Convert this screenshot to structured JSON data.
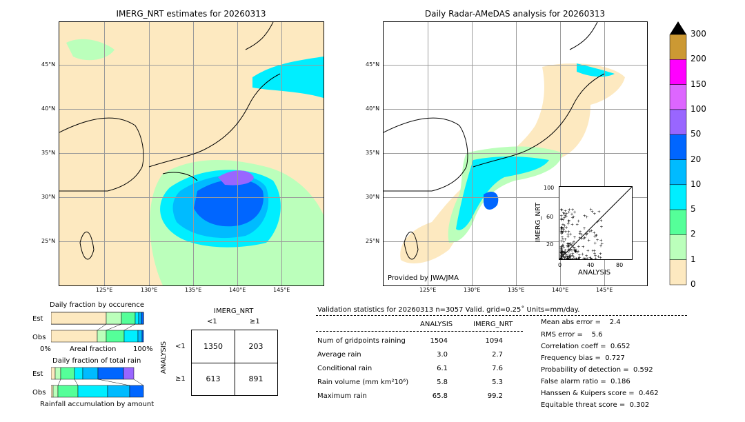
{
  "left_map": {
    "title": "IMERG_NRT estimates for 20260313",
    "lon_ticks": [
      "125°E",
      "130°E",
      "135°E",
      "140°E",
      "145°E"
    ],
    "lat_ticks": [
      "45°N",
      "40°N",
      "35°N",
      "30°N",
      "25°N"
    ]
  },
  "right_map": {
    "title": "Daily Radar-AMeDAS analysis for 20260313",
    "credit": "Provided by JWA/JMA",
    "lon_ticks": [
      "125°E",
      "130°E",
      "135°E",
      "140°E",
      "145°E"
    ],
    "lat_ticks": [
      "45°N",
      "40°N",
      "35°N",
      "30°N",
      "25°N"
    ]
  },
  "colorbar": {
    "levels": [
      "300",
      "200",
      "150",
      "100",
      "50",
      "20",
      "10",
      "5",
      "2",
      "1",
      "0"
    ],
    "colors": [
      "#cc9933",
      "#ff00ff",
      "#dd66ff",
      "#9966ff",
      "#0066ff",
      "#00bbff",
      "#00eeff",
      "#55ff99",
      "#bbffbb",
      "#fde9c0"
    ]
  },
  "chart_data": [
    {
      "type": "bar",
      "title": "Daily fraction by occurence",
      "categories": [
        "Est",
        "Obs"
      ],
      "xlabel": "Areal fraction",
      "x_tick_labels": [
        "0%",
        "100%"
      ],
      "stacked": true
    },
    {
      "type": "bar",
      "title": "Daily fraction of total rain",
      "categories": [
        "Est",
        "Obs"
      ],
      "xlabel": "Rainfall accumulation by amount",
      "stacked": true
    },
    {
      "type": "table",
      "title": "IMERG_NRT",
      "ylabel": "ANALYSIS",
      "col_headers": [
        "<1",
        "≥1"
      ],
      "row_headers": [
        "<1",
        "≥1"
      ],
      "values": [
        [
          1350,
          203
        ],
        [
          613,
          891
        ]
      ]
    },
    {
      "type": "scatter",
      "xlabel": "ANALYSIS",
      "ylabel": "IMERG_NRT",
      "xlim": [
        0,
        100
      ],
      "ylim": [
        0,
        100
      ],
      "ticks": [
        "0",
        "20",
        "40",
        "60",
        "80",
        "100"
      ]
    }
  ],
  "validation": {
    "header": "Validation statistics for 20260313  n=3057 Valid. grid=0.25˚ Units=mm/day.",
    "col_analysis": "ANALYSIS",
    "col_imerg": "IMERG_NRT",
    "rows": [
      {
        "label": "Num of gridpoints raining",
        "analysis": "1504",
        "imerg": "1094"
      },
      {
        "label": "Average rain",
        "analysis": "3.0",
        "imerg": "2.7"
      },
      {
        "label": "Conditional rain",
        "analysis": "6.1",
        "imerg": "7.6"
      },
      {
        "label": "Rain volume (mm km²10⁶)",
        "analysis": "5.8",
        "imerg": "5.3"
      },
      {
        "label": "Maximum rain",
        "analysis": "65.8",
        "imerg": "99.2"
      }
    ],
    "scores": [
      "Mean abs error =    2.4",
      "RMS error =    5.6",
      "Correlation coeff =  0.652",
      "Frequency bias =  0.727",
      "Probability of detection =  0.592",
      "False alarm ratio =  0.186",
      "Hanssen & Kuipers score =  0.462",
      "Equitable threat score =  0.302"
    ]
  }
}
